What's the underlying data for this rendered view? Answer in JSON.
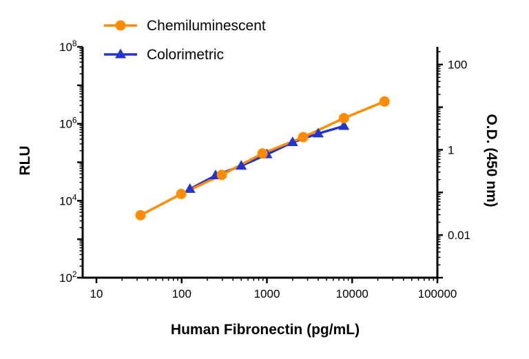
{
  "figure": {
    "background": "#FFFFFF",
    "axis_color": "#000000"
  },
  "chart_data": {
    "type": "line",
    "title": "",
    "x_axis": {
      "label": "Human Fibronectin (pg/mL)",
      "scale": "log",
      "range": [
        10,
        100000
      ],
      "tick_exponents": [
        1,
        2,
        3,
        4,
        5
      ],
      "tick_labels": [
        "10",
        "100",
        "1000",
        "10000",
        "100000"
      ]
    },
    "y_left_axis": {
      "label": "RLU",
      "scale": "log",
      "range": [
        100,
        100000000
      ],
      "tick_exponents": [
        2,
        4,
        6,
        8
      ],
      "tick_base": "10"
    },
    "y_right_axis": {
      "label": "O.D. (450 nm)",
      "scale": "log",
      "range": [
        0.001,
        260
      ],
      "tick_values": [
        100,
        1,
        0.01
      ],
      "tick_labels": [
        "100",
        "1",
        "0.01"
      ]
    },
    "legend_position": "top-left",
    "grid": false,
    "series": [
      {
        "name": "Chemiluminescent",
        "axis": "left",
        "color": "#FF8C00",
        "marker": "circle",
        "x": [
          32.9,
          98.8,
          296,
          889,
          2667,
          8000,
          24000
        ],
        "y": [
          4200,
          15000,
          47000,
          170000,
          450000,
          1400000,
          3800000
        ]
      },
      {
        "name": "Colorimetric",
        "axis": "right",
        "color": "#2433CC",
        "marker": "triangle",
        "x": [
          125,
          250,
          500,
          1000,
          2000,
          4000,
          8000
        ],
        "y": [
          0.12,
          0.25,
          0.42,
          0.78,
          1.5,
          2.4,
          3.6
        ]
      }
    ]
  }
}
